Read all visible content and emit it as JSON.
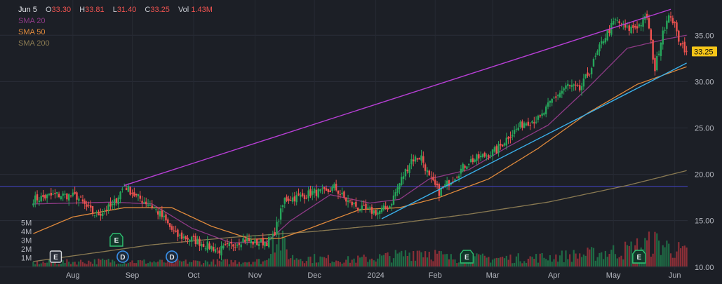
{
  "header": {
    "date": "Jun 5",
    "o_label": "O",
    "o_value": "33.30",
    "h_label": "H",
    "h_value": "33.81",
    "l_label": "L",
    "l_value": "31.40",
    "c_label": "C",
    "c_value": "33.25",
    "vol_label": "Vol",
    "vol_value": "1.43M"
  },
  "legend": [
    {
      "label": "SMA 20",
      "color": "#8e3a86"
    },
    {
      "label": "SMA 50",
      "color": "#e08a3c"
    },
    {
      "label": "SMA 200",
      "color": "#8a7a52"
    }
  ],
  "colors": {
    "bg": "#1c1f26",
    "up": "#26a65b",
    "down": "#ef5350",
    "trend_upper": "#b83fd6",
    "trend_lower": "#3ab0ea",
    "horizontal": "#3b3fa8",
    "price_tag": "#f5c518"
  },
  "price_tag": "33.25",
  "chart_data": {
    "type": "candlestick",
    "x_ticks": [
      "Aug",
      "Sep",
      "Oct",
      "Nov",
      "Dec",
      "2024",
      "Feb",
      "Mar",
      "Apr",
      "May",
      "Jun"
    ],
    "y_ticks": [
      "10.00",
      "15.00",
      "20.00",
      "25.00",
      "30.00",
      "35.00"
    ],
    "ylim": [
      9,
      38.5
    ],
    "vol_ticks": [
      "1M",
      "2M",
      "3M",
      "4M",
      "5M"
    ],
    "close_waypoints": [
      [
        0,
        17.3
      ],
      [
        12,
        17.8
      ],
      [
        22,
        17.6
      ],
      [
        28,
        16.2
      ],
      [
        32,
        15.6
      ],
      [
        40,
        16.6
      ],
      [
        46,
        18.8
      ],
      [
        52,
        17.6
      ],
      [
        60,
        16.6
      ],
      [
        66,
        15.2
      ],
      [
        72,
        13.4
      ],
      [
        80,
        13.0
      ],
      [
        88,
        12.3
      ],
      [
        94,
        11.8
      ],
      [
        100,
        12.3
      ],
      [
        106,
        13.0
      ],
      [
        112,
        12.6
      ],
      [
        118,
        12.7
      ],
      [
        121,
        13.2
      ],
      [
        124,
        15.2
      ],
      [
        127,
        17.3
      ],
      [
        135,
        17.6
      ],
      [
        142,
        18.1
      ],
      [
        148,
        18.0
      ],
      [
        152,
        18.6
      ],
      [
        158,
        17.2
      ],
      [
        166,
        16.2
      ],
      [
        174,
        15.9
      ],
      [
        180,
        16.6
      ],
      [
        186,
        19.5
      ],
      [
        191,
        21.6
      ],
      [
        196,
        21.9
      ],
      [
        200,
        19.6
      ],
      [
        205,
        18.1
      ],
      [
        212,
        19.6
      ],
      [
        220,
        21.4
      ],
      [
        228,
        22.0
      ],
      [
        234,
        22.6
      ],
      [
        240,
        24.1
      ],
      [
        248,
        25.6
      ],
      [
        256,
        26.0
      ],
      [
        262,
        28.0
      ],
      [
        270,
        29.6
      ],
      [
        276,
        29.1
      ],
      [
        282,
        31.6
      ],
      [
        288,
        34.6
      ],
      [
        294,
        36.6
      ],
      [
        300,
        35.6
      ],
      [
        306,
        36.1
      ],
      [
        310,
        37.0
      ],
      [
        314,
        31.3
      ],
      [
        318,
        35.6
      ],
      [
        322,
        37.2
      ],
      [
        326,
        34.6
      ],
      [
        330,
        33.25
      ]
    ],
    "volume_waypoints": [
      [
        0,
        0.4
      ],
      [
        40,
        0.6
      ],
      [
        60,
        0.5
      ],
      [
        90,
        0.5
      ],
      [
        118,
        0.6
      ],
      [
        121,
        3.6
      ],
      [
        124,
        3.2
      ],
      [
        130,
        1.0
      ],
      [
        160,
        0.7
      ],
      [
        186,
        1.2
      ],
      [
        196,
        1.8
      ],
      [
        210,
        0.9
      ],
      [
        250,
        0.9
      ],
      [
        280,
        1.3
      ],
      [
        300,
        1.8
      ],
      [
        314,
        2.6
      ],
      [
        330,
        1.43
      ]
    ],
    "sma20_waypoints": [
      [
        0,
        16.8
      ],
      [
        40,
        17.0
      ],
      [
        60,
        16.8
      ],
      [
        80,
        14.2
      ],
      [
        100,
        12.6
      ],
      [
        118,
        12.7
      ],
      [
        130,
        15.0
      ],
      [
        150,
        17.8
      ],
      [
        170,
        16.9
      ],
      [
        185,
        17.3
      ],
      [
        200,
        19.5
      ],
      [
        220,
        20.5
      ],
      [
        240,
        23.0
      ],
      [
        260,
        25.3
      ],
      [
        280,
        29.3
      ],
      [
        300,
        33.6
      ],
      [
        320,
        34.6
      ],
      [
        330,
        35.0
      ]
    ],
    "sma50_waypoints": [
      [
        0,
        13.6
      ],
      [
        20,
        15.4
      ],
      [
        46,
        16.4
      ],
      [
        70,
        16.4
      ],
      [
        90,
        14.4
      ],
      [
        110,
        13.0
      ],
      [
        125,
        13.1
      ],
      [
        140,
        14.2
      ],
      [
        165,
        16.2
      ],
      [
        185,
        16.4
      ],
      [
        205,
        17.5
      ],
      [
        230,
        19.5
      ],
      [
        255,
        22.8
      ],
      [
        280,
        26.6
      ],
      [
        305,
        29.7
      ],
      [
        330,
        31.6
      ]
    ],
    "sma200_waypoints": [
      [
        0,
        10.6
      ],
      [
        60,
        12.4
      ],
      [
        100,
        13.2
      ],
      [
        140,
        13.8
      ],
      [
        180,
        14.6
      ],
      [
        220,
        15.7
      ],
      [
        260,
        17.0
      ],
      [
        300,
        18.8
      ],
      [
        330,
        20.4
      ]
    ],
    "horizontal_level": 18.7,
    "trend_upper": [
      [
        46,
        18.8
      ],
      [
        322,
        37.8
      ]
    ],
    "trend_lower": [
      [
        176,
        15.2
      ],
      [
        330,
        32.0
      ]
    ],
    "events": [
      {
        "label": "E",
        "type": "earnings-white"
      },
      {
        "label": "D",
        "type": "dividend"
      },
      {
        "label": "E",
        "type": "earnings-green"
      },
      {
        "label": "D",
        "type": "dividend"
      },
      {
        "label": "D",
        "type": "dividend"
      },
      {
        "label": "E",
        "type": "earnings-green"
      },
      {
        "label": "E",
        "type": "earnings-green"
      },
      {
        "label": "E",
        "type": "earnings-green"
      }
    ]
  }
}
